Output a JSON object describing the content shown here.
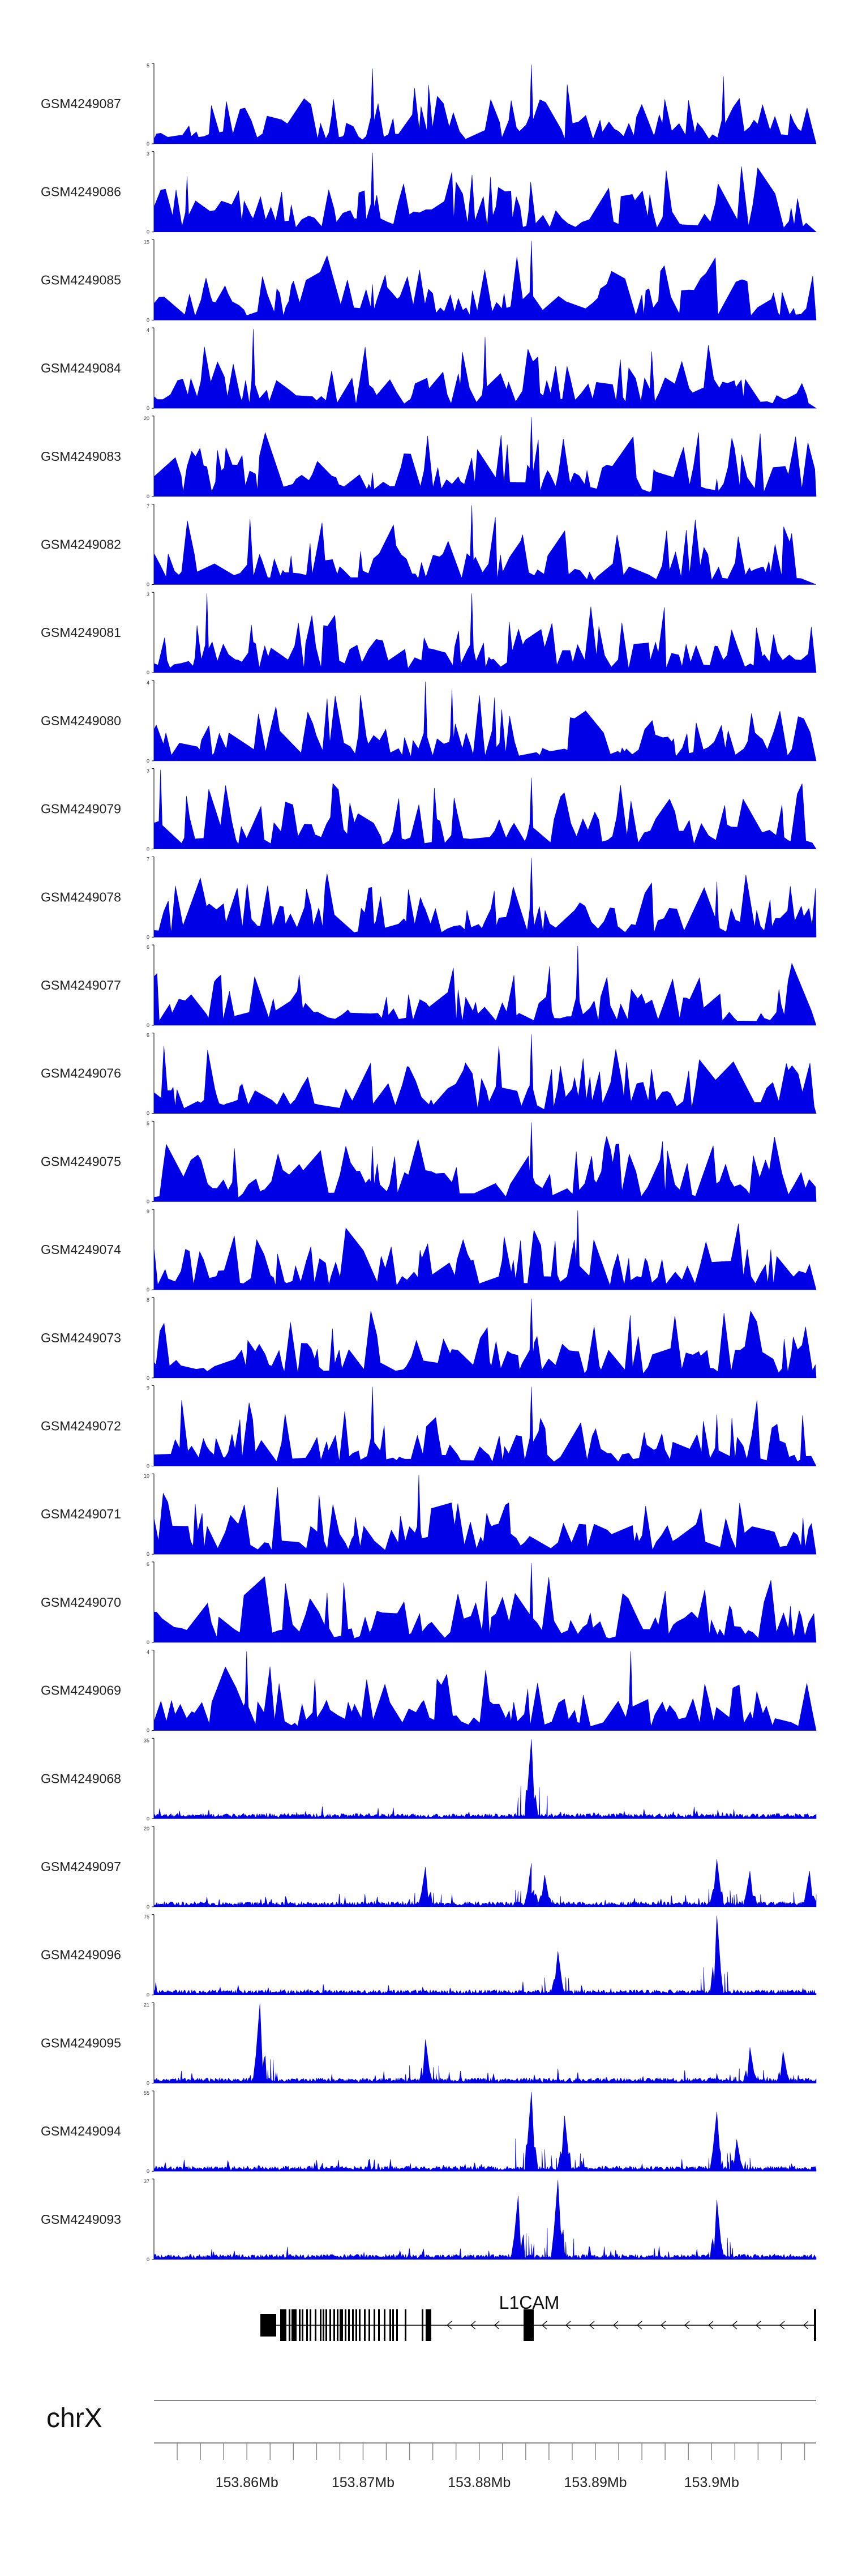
{
  "colors": {
    "signal": "#0000e6",
    "axis": "#000000",
    "gene": "#000000",
    "chrom_line": "#888888"
  },
  "chart_data": {
    "type": "area",
    "description_units": "genomic position (Mb) vs coverage signal",
    "xlim": [
      153.852,
      153.909
    ],
    "x_ticks": [
      153.86,
      153.87,
      153.88,
      153.89,
      153.9
    ],
    "x_tick_labels": [
      "153.86Mb",
      "153.87Mb",
      "153.88Mb",
      "153.89Mb",
      "153.9Mb"
    ],
    "chromosome": "chrX",
    "gene": {
      "name": "L1CAM",
      "strand": "-"
    },
    "tracks": [
      {
        "name": "GSM4249087",
        "ymax": 5,
        "ymax_label": "5",
        "style": "spiky",
        "seed": 87,
        "peaks": [
          [
            0.33,
            0.95
          ],
          [
            0.57,
            1.0
          ],
          [
            0.86,
            0.85
          ]
        ]
      },
      {
        "name": "GSM4249086",
        "ymax": 3,
        "ymax_label": "3",
        "style": "spiky",
        "seed": 86,
        "peaks": [
          [
            0.33,
            1.0
          ],
          [
            0.05,
            0.7
          ]
        ]
      },
      {
        "name": "GSM4249085",
        "ymax": 15,
        "ymax_label": "15",
        "style": "spiky",
        "seed": 85,
        "peaks": [
          [
            0.57,
            1.0
          ],
          [
            0.33,
            0.45
          ]
        ]
      },
      {
        "name": "GSM4249084",
        "ymax": 4,
        "ymax_label": "4",
        "style": "spiky",
        "seed": 84,
        "peaks": [
          [
            0.15,
            1.0
          ],
          [
            0.5,
            0.9
          ]
        ]
      },
      {
        "name": "GSM4249083",
        "ymax": 20,
        "ymax_label": "20",
        "style": "spiky",
        "seed": 83,
        "peaks": [
          [
            0.57,
            1.0
          ],
          [
            0.33,
            0.3
          ],
          [
            0.85,
            0.22
          ]
        ]
      },
      {
        "name": "GSM4249082",
        "ymax": 7,
        "ymax_label": "7",
        "style": "spiky",
        "seed": 82,
        "peaks": [
          [
            0.48,
            1.0
          ]
        ]
      },
      {
        "name": "GSM4249081",
        "ymax": 3,
        "ymax_label": "3",
        "style": "spiky",
        "seed": 81,
        "peaks": [
          [
            0.08,
            1.0
          ],
          [
            0.48,
            1.0
          ]
        ]
      },
      {
        "name": "GSM4249080",
        "ymax": 4,
        "ymax_label": "4",
        "style": "spiky",
        "seed": 80,
        "peaks": [
          [
            0.41,
            1.0
          ],
          [
            0.45,
            0.9
          ]
        ]
      },
      {
        "name": "GSM4249079",
        "ymax": 3,
        "ymax_label": "3",
        "style": "spiky",
        "seed": 79,
        "peaks": [
          [
            0.01,
            1.0
          ],
          [
            0.57,
            0.9
          ]
        ]
      },
      {
        "name": "GSM4249078",
        "ymax": 7,
        "ymax_label": "7",
        "style": "spiky",
        "seed": 78,
        "peaks": [
          [
            0.57,
            1.0
          ],
          [
            0.85,
            0.7
          ]
        ]
      },
      {
        "name": "GSM4249077",
        "ymax": 6,
        "ymax_label": "6",
        "style": "spiky",
        "seed": 77,
        "peaks": [
          [
            0.64,
            1.0
          ]
        ]
      },
      {
        "name": "GSM4249076",
        "ymax": 6,
        "ymax_label": "6",
        "style": "spiky",
        "seed": 76,
        "peaks": [
          [
            0.57,
            1.0
          ]
        ]
      },
      {
        "name": "GSM4249075",
        "ymax": 5,
        "ymax_label": "5",
        "style": "spiky",
        "seed": 75,
        "peaks": [
          [
            0.57,
            1.0
          ],
          [
            0.33,
            0.7
          ]
        ]
      },
      {
        "name": "GSM4249074",
        "ymax": 9,
        "ymax_label": "9",
        "style": "spiky",
        "seed": 74,
        "peaks": [
          [
            0.64,
            1.0
          ]
        ]
      },
      {
        "name": "GSM4249073",
        "ymax": 8,
        "ymax_label": "8",
        "style": "spiky",
        "seed": 73,
        "peaks": [
          [
            0.57,
            1.0
          ]
        ]
      },
      {
        "name": "GSM4249072",
        "ymax": 9,
        "ymax_label": "9",
        "style": "spiky",
        "seed": 72,
        "peaks": [
          [
            0.33,
            1.0
          ],
          [
            0.57,
            1.0
          ],
          [
            0.85,
            0.65
          ]
        ]
      },
      {
        "name": "GSM4249071",
        "ymax": 10,
        "ymax_label": "10",
        "style": "spiky",
        "seed": 71,
        "peaks": [
          [
            0.4,
            1.0
          ]
        ]
      },
      {
        "name": "GSM4249070",
        "ymax": 6,
        "ymax_label": "6",
        "style": "spiky",
        "seed": 70,
        "peaks": [
          [
            0.57,
            1.0
          ]
        ]
      },
      {
        "name": "GSM4249069",
        "ymax": 4,
        "ymax_label": "4",
        "style": "spiky",
        "seed": 69,
        "peaks": [
          [
            0.14,
            1.0
          ],
          [
            0.72,
            1.0
          ]
        ]
      },
      {
        "name": "GSM4249068",
        "ymax": 35,
        "ymax_label": "35",
        "style": "dense",
        "seed": 68,
        "peaks": [
          [
            0.57,
            1.0
          ]
        ]
      },
      {
        "name": "GSM4249097",
        "ymax": 20,
        "ymax_label": "20",
        "style": "dense",
        "seed": 97,
        "peaks": [
          [
            0.41,
            0.5
          ],
          [
            0.57,
            0.55
          ],
          [
            0.59,
            0.4
          ],
          [
            0.85,
            0.6
          ],
          [
            0.9,
            0.45
          ],
          [
            0.99,
            0.45
          ]
        ]
      },
      {
        "name": "GSM4249096",
        "ymax": 75,
        "ymax_label": "75",
        "style": "dense",
        "seed": 96,
        "peaks": [
          [
            0.61,
            0.55
          ],
          [
            0.85,
            1.0
          ]
        ]
      },
      {
        "name": "GSM4249095",
        "ymax": 21,
        "ymax_label": "21",
        "style": "dense",
        "seed": 95,
        "peaks": [
          [
            0.16,
            1.0
          ],
          [
            0.41,
            0.55
          ],
          [
            0.9,
            0.45
          ],
          [
            0.95,
            0.4
          ]
        ]
      },
      {
        "name": "GSM4249094",
        "ymax": 55,
        "ymax_label": "55",
        "style": "dense",
        "seed": 94,
        "peaks": [
          [
            0.57,
            1.0
          ],
          [
            0.62,
            0.7
          ],
          [
            0.85,
            0.75
          ],
          [
            0.88,
            0.4
          ]
        ]
      },
      {
        "name": "GSM4249093",
        "ymax": 37,
        "ymax_label": "37",
        "style": "dense",
        "seed": 93,
        "peaks": [
          [
            0.55,
            0.8
          ],
          [
            0.61,
            1.0
          ],
          [
            0.85,
            0.75
          ]
        ]
      }
    ]
  }
}
